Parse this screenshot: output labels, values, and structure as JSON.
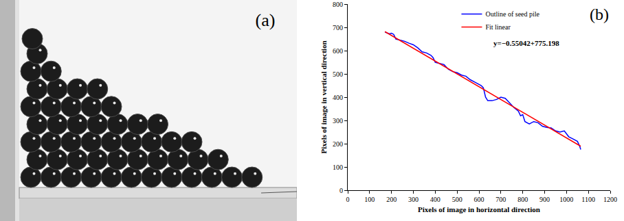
{
  "photo": {
    "label": "(a)"
  },
  "chart_data": {
    "type": "line",
    "panel_label": "(b)",
    "x_label": "Pixels of image in horizontal direction",
    "y_label": "Pixels of image in vertical direction",
    "annotations": [
      "y=−0.55042+775.198"
    ],
    "series": [
      {
        "name": "Outline of seed pile",
        "color": "#0000ff",
        "type": "line",
        "x": [
          170,
          190,
          200,
          210,
          220,
          240,
          260,
          280,
          300,
          320,
          340,
          360,
          380,
          390,
          400,
          420,
          440,
          460,
          480,
          500,
          520,
          540,
          560,
          580,
          600,
          610,
          620,
          630,
          640,
          660,
          680,
          700,
          720,
          740,
          760,
          780,
          790,
          800,
          810,
          830,
          850,
          870,
          890,
          910,
          930,
          950,
          970,
          990,
          1010,
          1030,
          1050,
          1060,
          1065
        ],
        "values": [
          680,
          672,
          675,
          670,
          650,
          645,
          640,
          632,
          625,
          612,
          595,
          590,
          580,
          570,
          550,
          545,
          540,
          520,
          510,
          505,
          495,
          490,
          475,
          465,
          455,
          450,
          440,
          400,
          385,
          385,
          390,
          400,
          395,
          375,
          355,
          340,
          320,
          325,
          295,
          285,
          295,
          290,
          275,
          270,
          268,
          255,
          250,
          255,
          230,
          220,
          210,
          190,
          175
        ]
      },
      {
        "name": "Fit linear",
        "color": "#ff0000",
        "type": "line",
        "x": [
          170,
          1065
        ],
        "values": [
          681.6,
          189.0
        ]
      }
    ],
    "xlim": [
      0,
      1200
    ],
    "xticks": [
      0,
      100,
      200,
      300,
      400,
      500,
      600,
      700,
      800,
      900,
      1000,
      1100,
      1200
    ],
    "ylim": [
      0,
      800
    ],
    "yticks": [
      0,
      100,
      200,
      300,
      400,
      500,
      600,
      700,
      800
    ],
    "legend": "top",
    "grid": false
  }
}
